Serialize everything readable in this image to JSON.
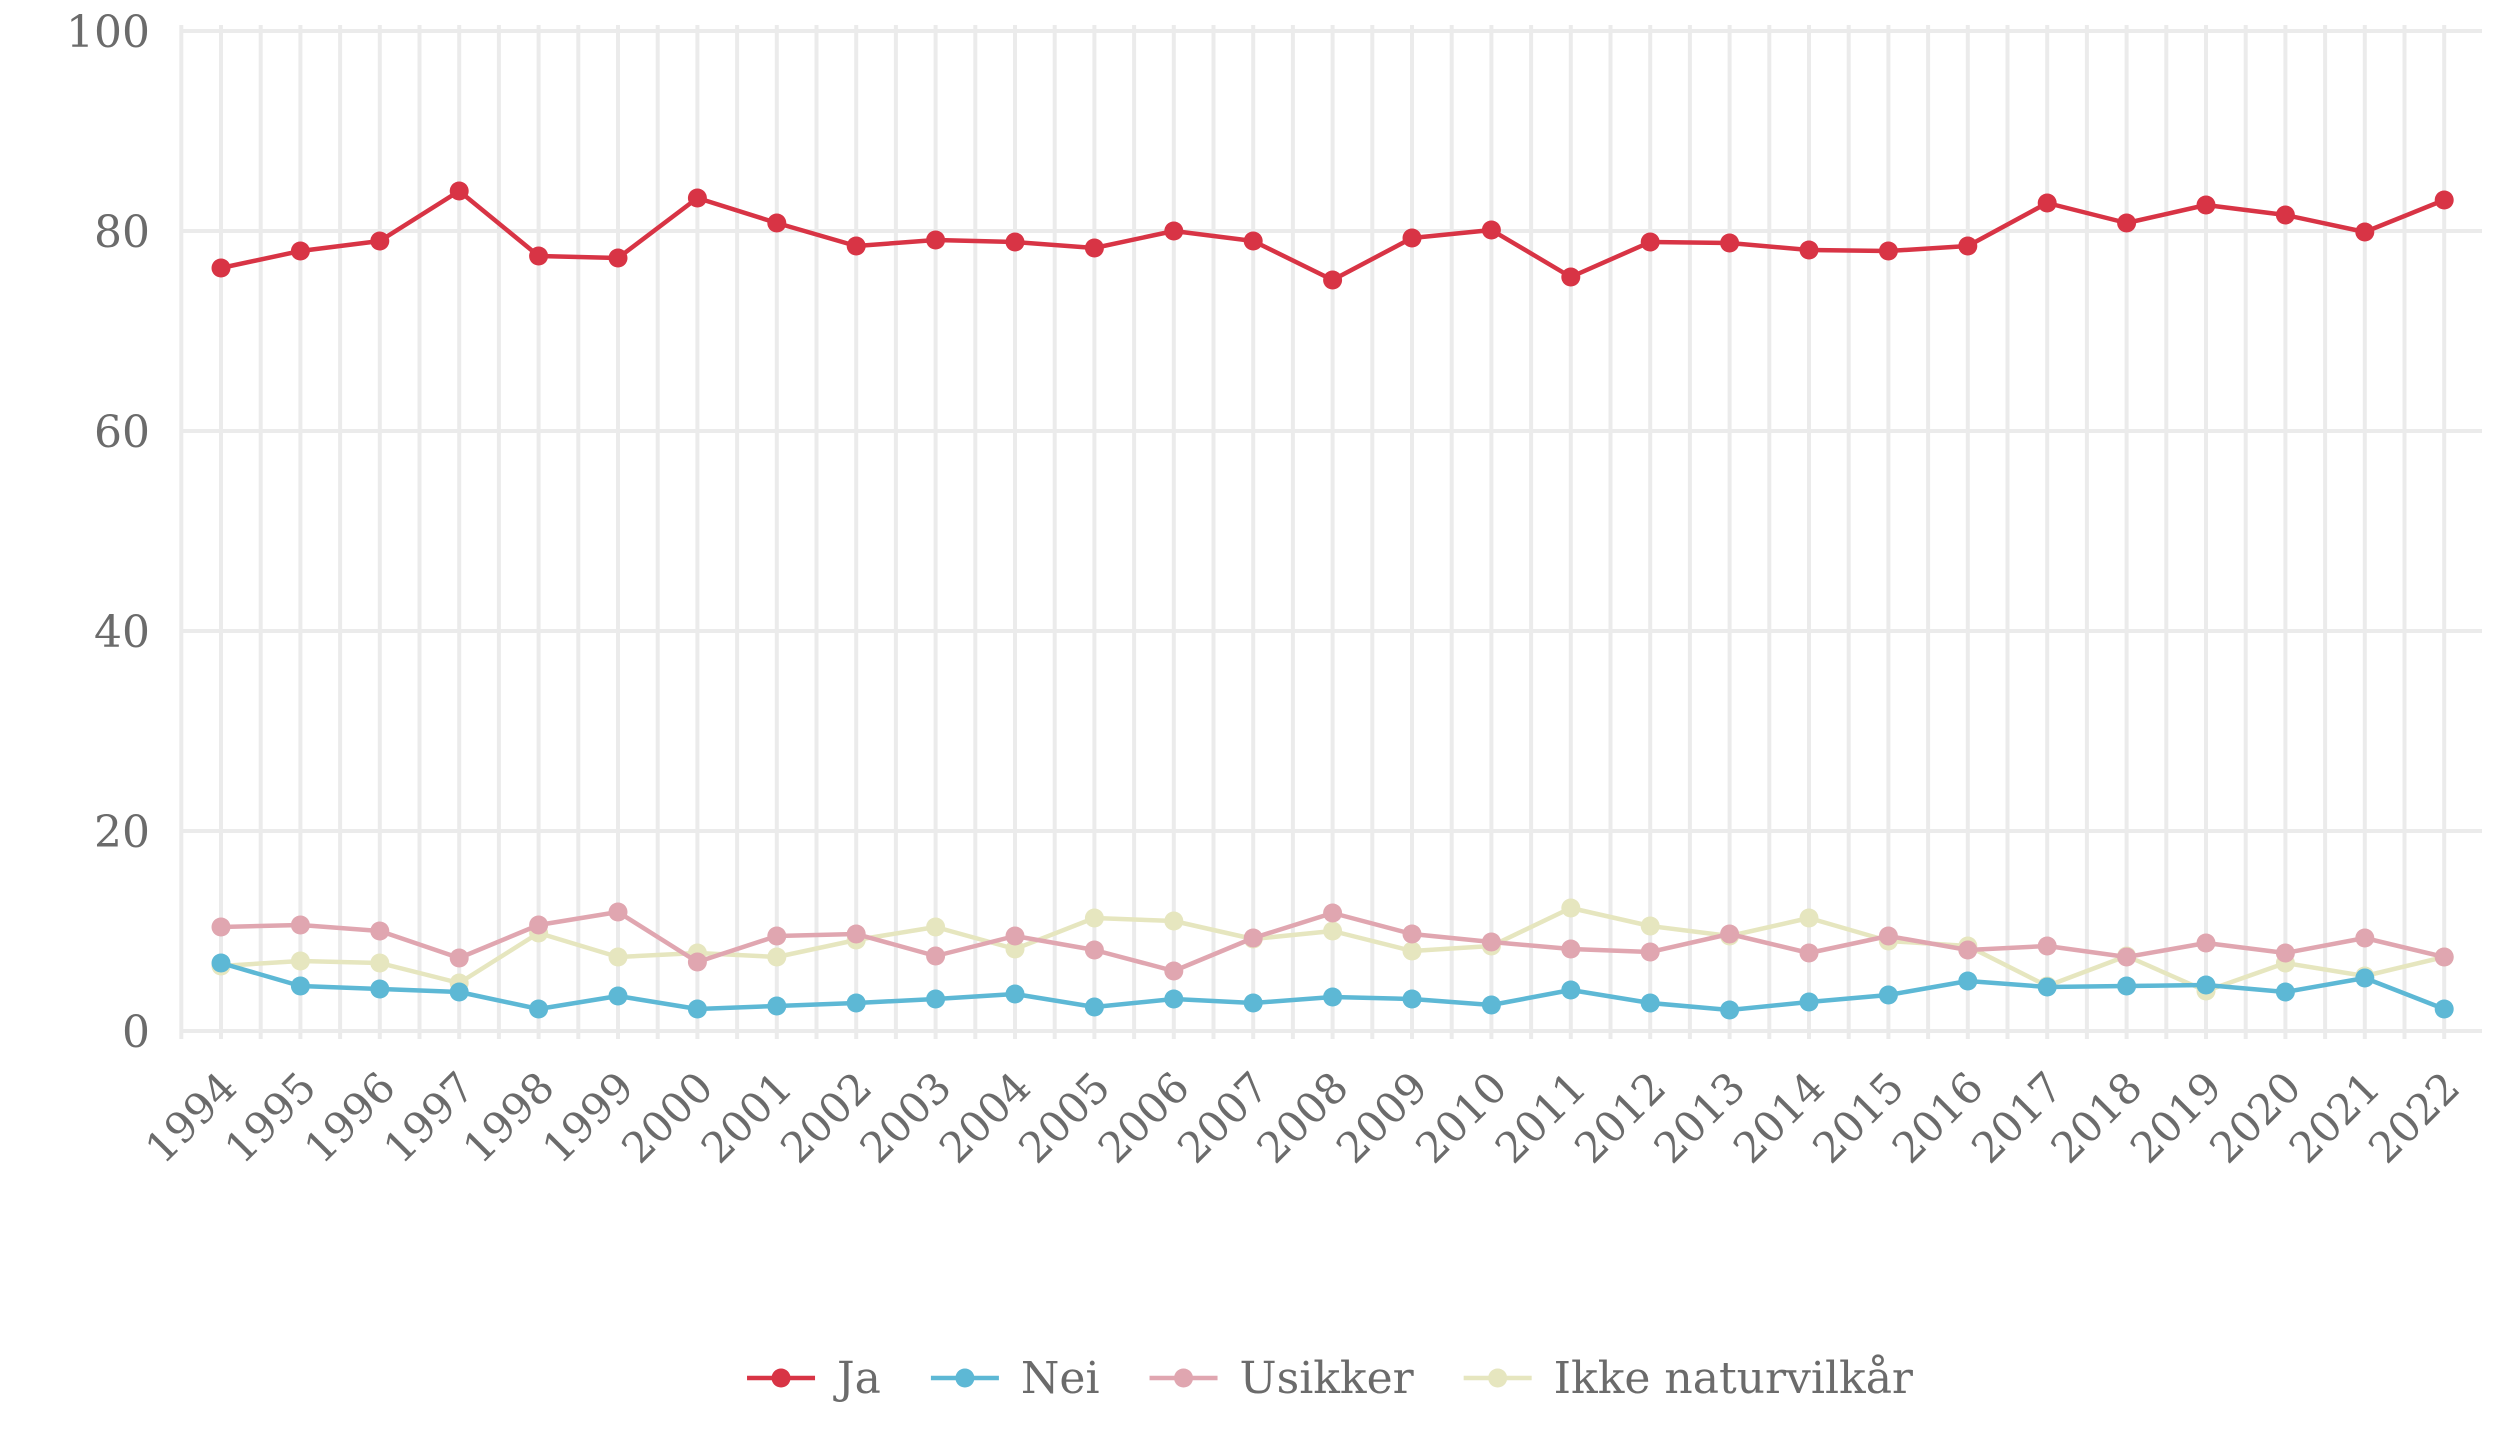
{
  "chart_data": {
    "type": "line",
    "title": "",
    "xlabel": "",
    "ylabel": "",
    "x": [
      "1994",
      "1995",
      "1996",
      "1997",
      "1998",
      "1999",
      "2000",
      "2001",
      "2002",
      "2003",
      "2004",
      "2005",
      "2006",
      "2007",
      "2008",
      "2009",
      "2010",
      "2011",
      "2012",
      "2013",
      "2014",
      "2015",
      "2016",
      "2017",
      "2018",
      "2019",
      "2020",
      "2021",
      "2022"
    ],
    "ylim": [
      0,
      100
    ],
    "yticks": [
      0,
      20,
      40,
      60,
      80,
      100
    ],
    "grid": true,
    "legend_position": "bottom",
    "series": [
      {
        "name": "Ja",
        "color": "#d83445",
        "values": [
          76.3,
          78.0,
          79.0,
          84.0,
          77.5,
          77.3,
          83.3,
          80.8,
          78.5,
          79.1,
          78.9,
          78.3,
          80.0,
          79.0,
          75.1,
          79.3,
          80.1,
          75.4,
          78.9,
          78.8,
          78.1,
          78.0,
          78.5,
          82.8,
          80.8,
          82.6,
          81.6,
          79.9,
          83.1
        ]
      },
      {
        "name": "Nei",
        "color": "#5db8d5",
        "values": [
          6.8,
          4.5,
          4.2,
          3.9,
          2.2,
          3.5,
          2.2,
          2.5,
          2.8,
          3.2,
          3.7,
          2.4,
          3.2,
          2.8,
          3.4,
          3.2,
          2.6,
          4.1,
          2.8,
          2.1,
          2.9,
          3.6,
          5.0,
          4.4,
          4.5,
          4.6,
          3.9,
          5.3,
          2.2
        ]
      },
      {
        "name": "Usikker",
        "color": "#e0a6b0",
        "values": [
          10.4,
          10.6,
          10.0,
          7.3,
          10.6,
          11.9,
          6.9,
          9.5,
          9.7,
          7.5,
          9.5,
          8.1,
          6.0,
          9.3,
          11.8,
          9.7,
          8.9,
          8.2,
          7.9,
          9.7,
          7.8,
          9.5,
          8.1,
          8.5,
          7.4,
          8.8,
          7.8,
          9.3,
          7.4
        ]
      },
      {
        "name": "Ikke naturvilkår",
        "color": "#e6e6bf",
        "values": [
          6.5,
          7.0,
          6.8,
          4.8,
          9.8,
          7.4,
          7.8,
          7.4,
          9.1,
          10.4,
          8.2,
          11.3,
          11.0,
          9.2,
          10.0,
          8.0,
          8.5,
          12.3,
          10.5,
          9.5,
          11.3,
          9.0,
          8.5,
          4.5,
          7.5,
          4.0,
          6.8,
          5.5,
          7.4
        ]
      }
    ]
  }
}
